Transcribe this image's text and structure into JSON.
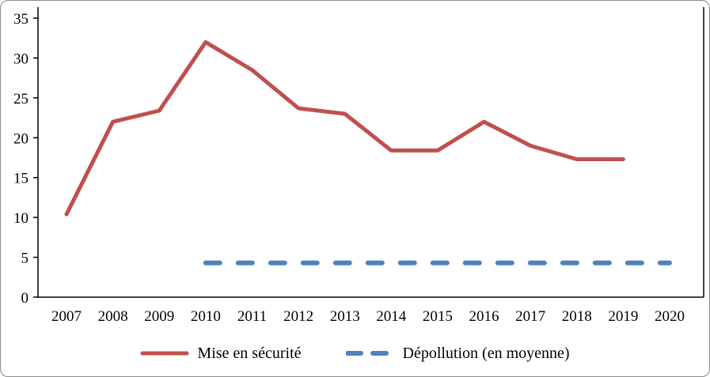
{
  "chart_data": {
    "type": "line",
    "x": [
      2007,
      2008,
      2009,
      2010,
      2011,
      2012,
      2013,
      2014,
      2015,
      2016,
      2017,
      2018,
      2019,
      2020
    ],
    "series": [
      {
        "name": "Mise en sécurité",
        "color": "#C0504D",
        "style": "solid",
        "values": [
          10.4,
          22,
          23.4,
          32,
          28.5,
          23.7,
          23,
          18.4,
          18.4,
          22,
          19,
          17.3,
          17.3,
          null
        ]
      },
      {
        "name": "Dépollution (en moyenne)",
        "color": "#4F81BD",
        "style": "dashed",
        "values": [
          null,
          null,
          null,
          4.3,
          4.3,
          4.3,
          4.3,
          4.3,
          4.3,
          4.3,
          4.3,
          4.3,
          4.3,
          4.3
        ]
      }
    ],
    "title": "",
    "xlabel": "",
    "ylabel": "",
    "ylim": [
      0,
      35
    ],
    "yticks": [
      0,
      5,
      10,
      15,
      20,
      25,
      30,
      35
    ],
    "grid": false,
    "legend_position": "bottom",
    "axis_color": "#000000",
    "label_color": "#000000"
  }
}
